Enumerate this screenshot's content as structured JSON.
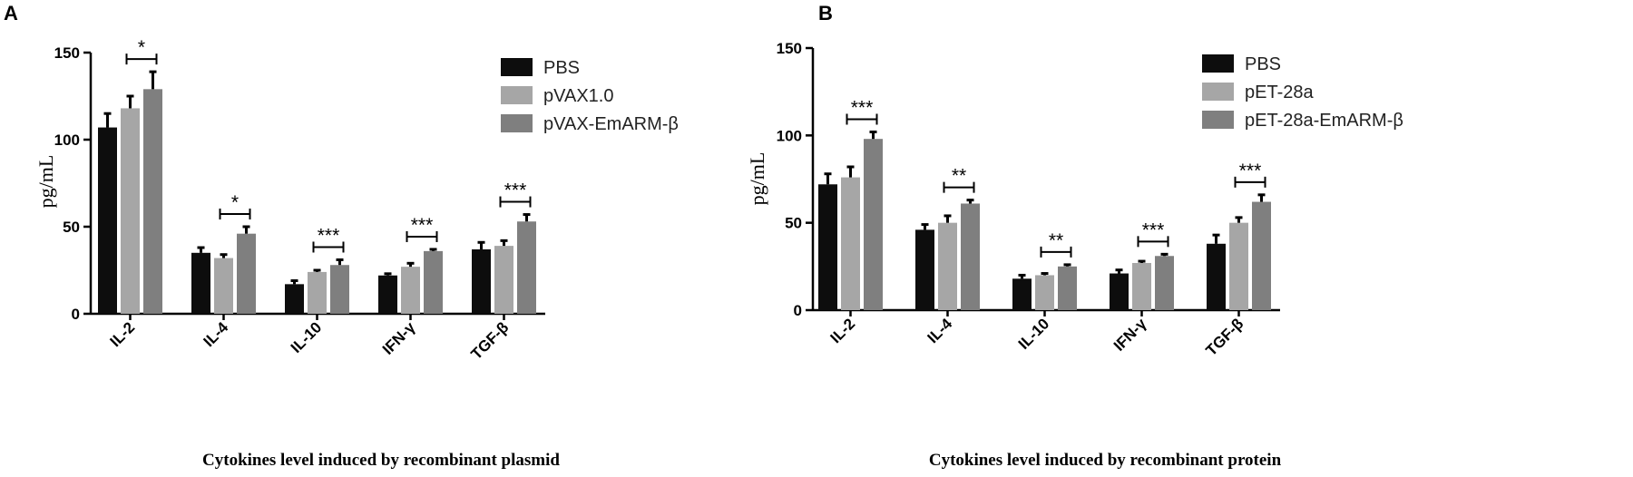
{
  "chart_data": [
    {
      "type": "bar",
      "panel": "A",
      "categories": [
        "IL-2",
        "IL-4",
        "IL-10",
        "IFN-γ",
        "TGF-β"
      ],
      "series": [
        {
          "name": "PBS",
          "color": "#0d0d0d",
          "values": [
            107,
            35,
            17,
            22,
            37
          ],
          "errors": [
            8,
            3,
            2,
            1,
            4
          ]
        },
        {
          "name": "pVAX1.0",
          "color": "#a6a6a6",
          "values": [
            118,
            32,
            24,
            27,
            39
          ],
          "errors": [
            7,
            2,
            1,
            2,
            3
          ]
        },
        {
          "name": "pVAX-EmARM-β",
          "color": "#7f7f7f",
          "values": [
            129,
            46,
            28,
            36,
            53
          ],
          "errors": [
            10,
            4,
            3,
            1,
            4
          ]
        }
      ],
      "significance": [
        {
          "category": "IL-2",
          "label": "*"
        },
        {
          "category": "IL-4",
          "label": "*"
        },
        {
          "category": "IL-10",
          "label": "***"
        },
        {
          "category": "IFN-γ",
          "label": "***"
        },
        {
          "category": "TGF-β",
          "label": "***"
        }
      ],
      "ylim": [
        0,
        150
      ],
      "yticks": [
        0,
        50,
        100,
        150
      ],
      "ylabel": "pg/mL",
      "xlabel": "Cytokines level induced by recombinant plasmid",
      "legend_position": "right"
    },
    {
      "type": "bar",
      "panel": "B",
      "categories": [
        "IL-2",
        "IL-4",
        "IL-10",
        "IFN-γ",
        "TGF-β"
      ],
      "series": [
        {
          "name": "PBS",
          "color": "#0d0d0d",
          "values": [
            72,
            46,
            18,
            21,
            38
          ],
          "errors": [
            6,
            3,
            2,
            2,
            5
          ]
        },
        {
          "name": "pET-28a",
          "color": "#a6a6a6",
          "values": [
            76,
            50,
            20,
            27,
            50
          ],
          "errors": [
            6,
            4,
            1,
            1,
            3
          ]
        },
        {
          "name": "pET-28a-EmARM-β",
          "color": "#7f7f7f",
          "values": [
            98,
            61,
            25,
            31,
            62
          ],
          "errors": [
            4,
            2,
            1,
            1,
            4
          ]
        }
      ],
      "significance": [
        {
          "category": "IL-2",
          "label": "***"
        },
        {
          "category": "IL-4",
          "label": "**"
        },
        {
          "category": "IL-10",
          "label": "**"
        },
        {
          "category": "IFN-γ",
          "label": "***"
        },
        {
          "category": "TGF-β",
          "label": "***"
        }
      ],
      "ylim": [
        0,
        150
      ],
      "yticks": [
        0,
        50,
        100,
        150
      ],
      "ylabel": "pg/mL",
      "xlabel": "Cytokines level induced by recombinant protein",
      "legend_position": "right"
    }
  ]
}
